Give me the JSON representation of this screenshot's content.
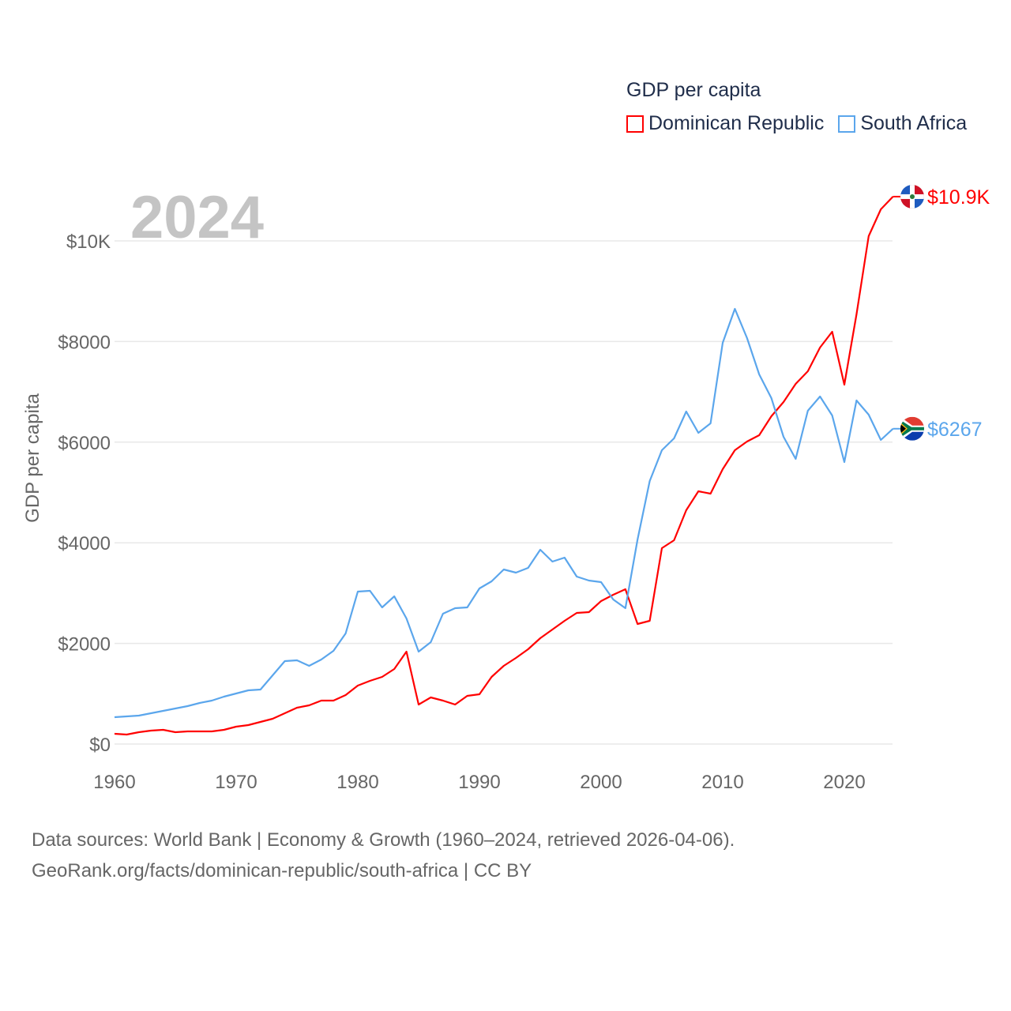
{
  "chart_data": {
    "type": "line",
    "title": "GDP per capita",
    "year_label": "2024",
    "xlabel": "",
    "ylabel": "GDP per capita",
    "xlim": [
      1960,
      2024
    ],
    "ylim": [
      0,
      11000
    ],
    "x_ticks": [
      1960,
      1970,
      1980,
      1990,
      2000,
      2010,
      2020
    ],
    "x_tick_labels": [
      "1960",
      "1970",
      "1980",
      "1990",
      "2000",
      "2010",
      "2020"
    ],
    "y_ticks": [
      0,
      2000,
      4000,
      6000,
      8000,
      10000
    ],
    "y_tick_labels": [
      "$0",
      "$2000",
      "$4000",
      "$6000",
      "$8000",
      "$10K"
    ],
    "grid": true,
    "legend_position": "top-right",
    "x": [
      1960,
      1961,
      1962,
      1963,
      1964,
      1965,
      1966,
      1967,
      1968,
      1969,
      1970,
      1971,
      1972,
      1973,
      1974,
      1975,
      1976,
      1977,
      1978,
      1979,
      1980,
      1981,
      1982,
      1983,
      1984,
      1985,
      1986,
      1987,
      1988,
      1989,
      1990,
      1991,
      1992,
      1993,
      1994,
      1995,
      1996,
      1997,
      1998,
      1999,
      2000,
      2001,
      2002,
      2003,
      2004,
      2005,
      2006,
      2007,
      2008,
      2009,
      2010,
      2011,
      2012,
      2013,
      2014,
      2015,
      2016,
      2017,
      2018,
      2019,
      2020,
      2021,
      2022,
      2023,
      2024
    ],
    "series": [
      {
        "name": "Dominican Republic",
        "color": "#ff0000",
        "end_label": "$10.9K",
        "values": [
          204,
          188,
          235,
          267,
          283,
          235,
          251,
          251,
          251,
          283,
          345,
          377,
          440,
          502,
          612,
          722,
          769,
          863,
          863,
          973,
          1162,
          1256,
          1334,
          1491,
          1837,
          785,
          926,
          863,
          785,
          958,
          989,
          1334,
          1554,
          1711,
          1884,
          2104,
          2276,
          2449,
          2606,
          2622,
          2841,
          2967,
          3077,
          2386,
          2449,
          3893,
          4050,
          4647,
          5024,
          4976,
          5463,
          5840,
          6013,
          6138,
          6515,
          6797,
          7159,
          7410,
          7881,
          8195,
          7143,
          8540,
          10094,
          10628,
          10880
        ]
      },
      {
        "name": "South Africa",
        "color": "#5ba6ec",
        "end_label": "$6267",
        "values": [
          534,
          549,
          565,
          612,
          659,
          706,
          753,
          816,
          863,
          942,
          1005,
          1067,
          1083,
          1366,
          1648,
          1664,
          1554,
          1680,
          1852,
          2198,
          3030,
          3045,
          2716,
          2936,
          2496,
          1837,
          2025,
          2590,
          2700,
          2716,
          3093,
          3234,
          3469,
          3407,
          3501,
          3862,
          3626,
          3705,
          3328,
          3250,
          3218,
          2873,
          2700,
          4066,
          5228,
          5840,
          6075,
          6609,
          6185,
          6374,
          7975,
          8650,
          8069,
          7347,
          6876,
          6107,
          5667,
          6625,
          6907,
          6531,
          5604,
          6829,
          6546,
          6044,
          6267
        ]
      }
    ]
  },
  "source": {
    "line1": "Data sources: World Bank | Economy & Growth (1960–2024, retrieved 2026-04-06).",
    "line2": "GeoRank.org/facts/dominican-republic/south-africa | CC BY"
  }
}
